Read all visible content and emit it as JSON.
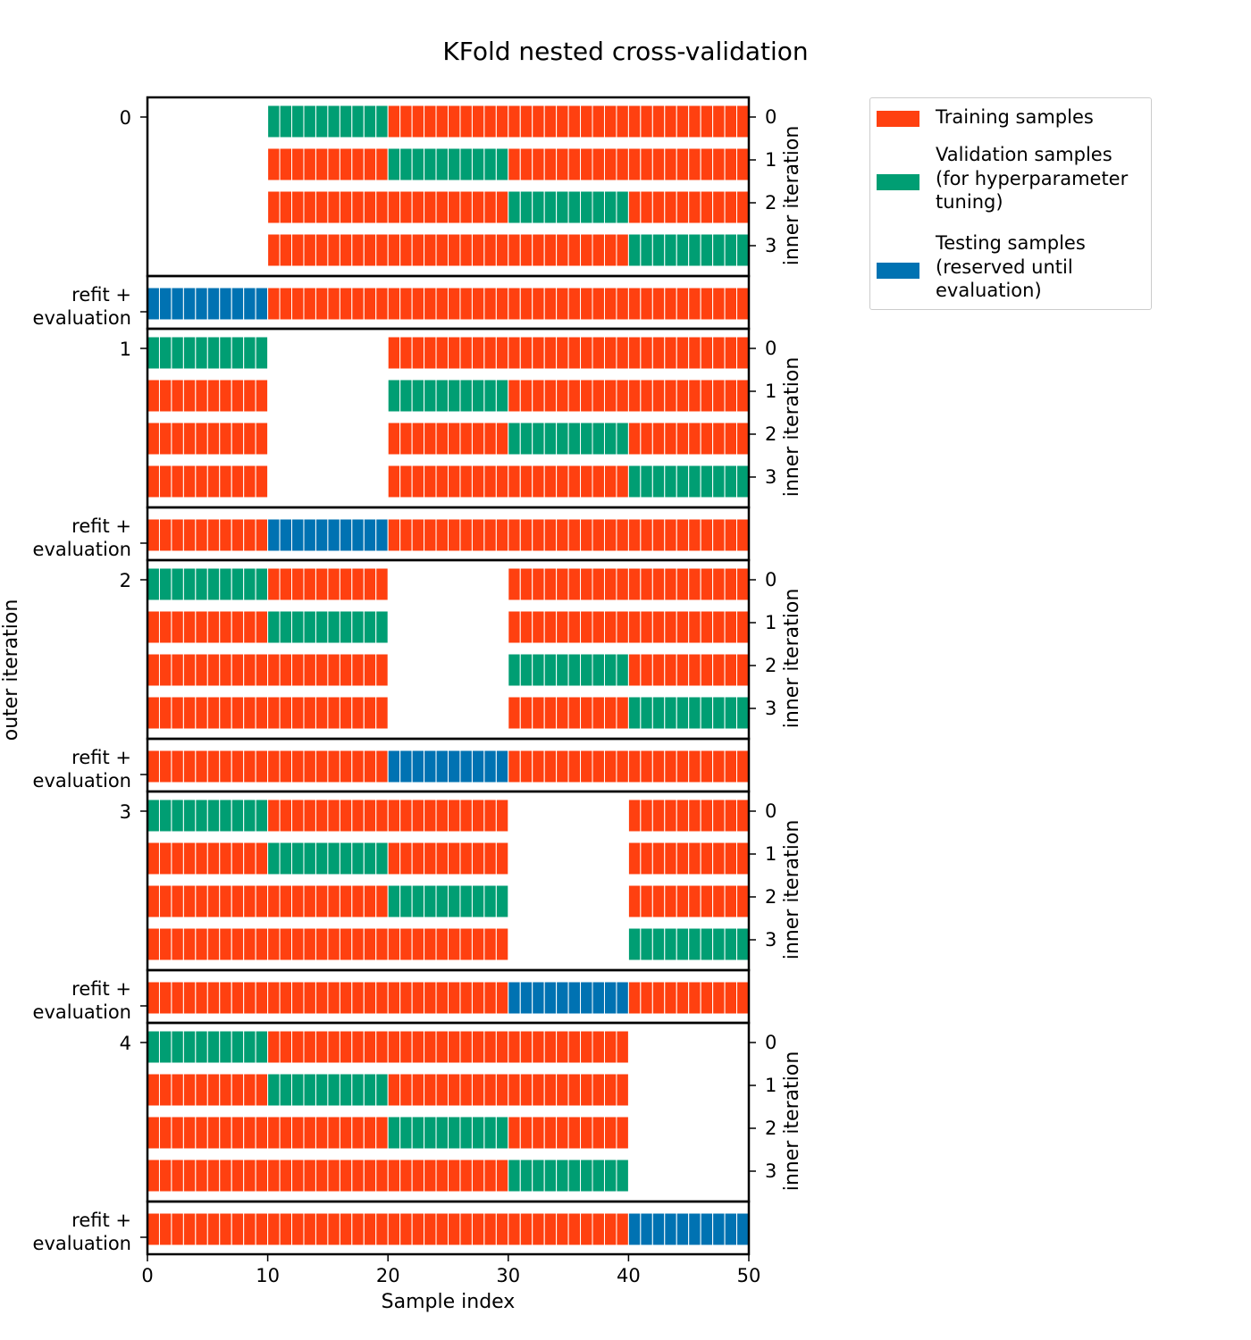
{
  "chart_data": {
    "type": "bar",
    "title": "KFold nested cross-validation",
    "xlabel": "Sample index",
    "ylabel": "outer iteration",
    "right_ylabel": "inner iteration",
    "xlim": [
      0,
      50
    ],
    "xticks": [
      "0",
      "10",
      "20",
      "30",
      "40",
      "50"
    ],
    "n_samples": 50,
    "fold_size": 10,
    "n_outer": 5,
    "n_inner": 4,
    "outer_labels": [
      "0",
      "1",
      "2",
      "3",
      "4"
    ],
    "inner_labels": [
      "0",
      "1",
      "2",
      "3"
    ],
    "refit_label": "refit +\nevaluation",
    "legend": {
      "placement": "outside-top-right",
      "items": [
        {
          "key": "train",
          "label": "Training samples"
        },
        {
          "key": "val",
          "label": "Validation samples\n(for hyperparameter\ntuning)"
        },
        {
          "key": "test",
          "label": "Testing samples\n(reserved until\nevaluation)"
        }
      ]
    },
    "colors": {
      "train": "#ff4010",
      "val": "#009e73",
      "test": "#0072b2",
      "edge": "#ffffff"
    },
    "outer": [
      {
        "test_fold": [
          0,
          10
        ],
        "inner": [
          [
            10,
            20
          ],
          [
            20,
            30
          ],
          [
            30,
            40
          ],
          [
            40,
            50
          ]
        ]
      },
      {
        "test_fold": [
          10,
          20
        ],
        "inner": [
          [
            0,
            10
          ],
          [
            20,
            30
          ],
          [
            30,
            40
          ],
          [
            40,
            50
          ]
        ]
      },
      {
        "test_fold": [
          20,
          30
        ],
        "inner": [
          [
            0,
            10
          ],
          [
            10,
            20
          ],
          [
            30,
            40
          ],
          [
            40,
            50
          ]
        ]
      },
      {
        "test_fold": [
          30,
          40
        ],
        "inner": [
          [
            0,
            10
          ],
          [
            10,
            20
          ],
          [
            20,
            30
          ],
          [
            40,
            50
          ]
        ]
      },
      {
        "test_fold": [
          40,
          50
        ],
        "inner": [
          [
            0,
            10
          ],
          [
            10,
            20
          ],
          [
            20,
            30
          ],
          [
            30,
            40
          ]
        ]
      }
    ]
  }
}
